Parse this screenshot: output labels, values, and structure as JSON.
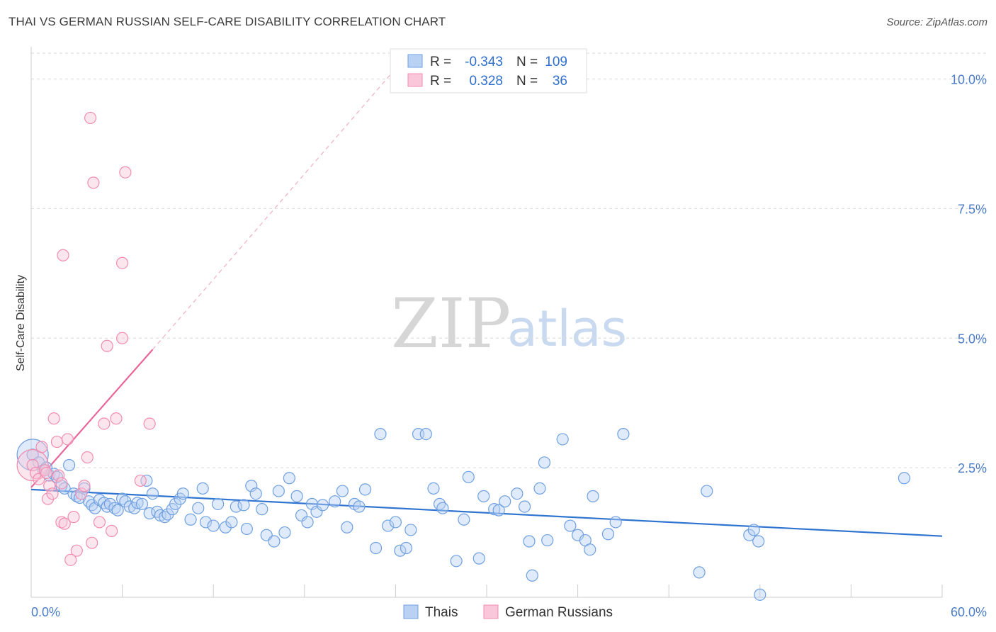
{
  "title": "THAI VS GERMAN RUSSIAN SELF-CARE DISABILITY CORRELATION CHART",
  "source": "Source: ZipAtlas.com",
  "watermark": {
    "zip": "ZIP",
    "atlas": "atlas"
  },
  "chart_data": {
    "type": "scatter",
    "ylabel": "Self-Care Disability",
    "xlabel": "",
    "xlim": [
      0,
      60
    ],
    "ylim": [
      0,
      10.5
    ],
    "x_tick_labels": [
      "0.0%",
      "60.0%"
    ],
    "y_ticks": [
      2.5,
      5.0,
      7.5,
      10.0
    ],
    "y_tick_labels": [
      "2.5%",
      "5.0%",
      "7.5%",
      "10.0%"
    ],
    "grid": "horizontal dashed",
    "legend_position": "top-center",
    "legend": [
      {
        "r_label": "R =",
        "r_value": "-0.343",
        "n_label": "N =",
        "n_value": "109"
      },
      {
        "r_label": "R =",
        "r_value": "0.328",
        "n_label": "N =",
        "n_value": "36"
      }
    ],
    "series": [
      {
        "name": "Thais",
        "color": "#6fa0e0",
        "line_color": "#2f74d0",
        "trend": {
          "x0": 0,
          "y0": 2.08,
          "x1": 60,
          "y1": 1.18
        },
        "points": [
          [
            0.1,
            2.75
          ],
          [
            0.5,
            2.6
          ],
          [
            0.8,
            2.45
          ],
          [
            1.0,
            2.5
          ],
          [
            1.2,
            2.35
          ],
          [
            1.5,
            2.38
          ],
          [
            1.7,
            2.32
          ],
          [
            2.0,
            2.15
          ],
          [
            2.2,
            2.1
          ],
          [
            2.5,
            2.55
          ],
          [
            2.8,
            2.0
          ],
          [
            3.0,
            1.95
          ],
          [
            3.2,
            1.92
          ],
          [
            3.5,
            2.1
          ],
          [
            3.8,
            1.85
          ],
          [
            4.0,
            1.78
          ],
          [
            4.2,
            1.72
          ],
          [
            4.5,
            1.88
          ],
          [
            4.8,
            1.82
          ],
          [
            5.0,
            1.75
          ],
          [
            5.2,
            1.8
          ],
          [
            5.5,
            1.72
          ],
          [
            5.7,
            1.68
          ],
          [
            6.0,
            1.9
          ],
          [
            6.2,
            1.85
          ],
          [
            6.5,
            1.75
          ],
          [
            6.8,
            1.72
          ],
          [
            7.0,
            1.82
          ],
          [
            7.3,
            1.8
          ],
          [
            7.6,
            2.25
          ],
          [
            7.8,
            1.62
          ],
          [
            8.0,
            2.0
          ],
          [
            8.3,
            1.65
          ],
          [
            8.5,
            1.58
          ],
          [
            8.8,
            1.55
          ],
          [
            9.0,
            1.6
          ],
          [
            9.3,
            1.7
          ],
          [
            9.5,
            1.8
          ],
          [
            9.8,
            1.9
          ],
          [
            10.0,
            2.0
          ],
          [
            10.5,
            1.5
          ],
          [
            11.0,
            1.72
          ],
          [
            11.3,
            2.1
          ],
          [
            11.5,
            1.45
          ],
          [
            12.0,
            1.38
          ],
          [
            12.3,
            1.8
          ],
          [
            12.8,
            1.35
          ],
          [
            13.2,
            1.45
          ],
          [
            13.5,
            1.75
          ],
          [
            14.0,
            1.78
          ],
          [
            14.2,
            1.32
          ],
          [
            14.5,
            2.15
          ],
          [
            14.8,
            2.0
          ],
          [
            15.2,
            1.7
          ],
          [
            15.5,
            1.2
          ],
          [
            16.0,
            1.08
          ],
          [
            16.3,
            2.05
          ],
          [
            16.7,
            1.25
          ],
          [
            17.0,
            2.3
          ],
          [
            17.5,
            1.95
          ],
          [
            17.8,
            1.58
          ],
          [
            18.2,
            1.45
          ],
          [
            18.5,
            1.8
          ],
          [
            18.8,
            1.65
          ],
          [
            19.2,
            1.78
          ],
          [
            20.0,
            1.85
          ],
          [
            20.5,
            2.05
          ],
          [
            20.8,
            1.35
          ],
          [
            21.3,
            1.8
          ],
          [
            21.6,
            1.75
          ],
          [
            22.0,
            2.08
          ],
          [
            22.7,
            0.95
          ],
          [
            23.0,
            3.15
          ],
          [
            23.5,
            1.38
          ],
          [
            24.0,
            1.45
          ],
          [
            24.3,
            0.9
          ],
          [
            24.7,
            0.95
          ],
          [
            25.0,
            1.3
          ],
          [
            25.5,
            3.15
          ],
          [
            26.0,
            3.15
          ],
          [
            26.5,
            2.1
          ],
          [
            26.9,
            1.8
          ],
          [
            27.1,
            1.72
          ],
          [
            28.0,
            0.7
          ],
          [
            28.5,
            1.5
          ],
          [
            28.8,
            2.32
          ],
          [
            29.5,
            0.75
          ],
          [
            29.8,
            1.95
          ],
          [
            30.5,
            1.7
          ],
          [
            30.8,
            1.68
          ],
          [
            31.2,
            1.85
          ],
          [
            32.0,
            2.0
          ],
          [
            32.5,
            1.75
          ],
          [
            32.8,
            1.08
          ],
          [
            33.0,
            0.42
          ],
          [
            33.5,
            2.1
          ],
          [
            33.8,
            2.6
          ],
          [
            34.0,
            1.1
          ],
          [
            35.0,
            3.05
          ],
          [
            35.5,
            1.38
          ],
          [
            36.0,
            1.2
          ],
          [
            36.5,
            1.1
          ],
          [
            36.8,
            0.92
          ],
          [
            37.0,
            1.95
          ],
          [
            38.0,
            1.22
          ],
          [
            38.5,
            1.45
          ],
          [
            39.0,
            3.15
          ],
          [
            44.0,
            0.48
          ],
          [
            44.5,
            2.05
          ],
          [
            47.3,
            1.2
          ],
          [
            47.6,
            1.3
          ],
          [
            47.9,
            1.08
          ],
          [
            48.0,
            0.05
          ],
          [
            57.5,
            2.3
          ]
        ],
        "big_points": [
          [
            0.1,
            2.75
          ]
        ]
      },
      {
        "name": "German Russians",
        "color": "#f08cb0",
        "line_color": "#e8659a",
        "trend": {
          "x0": 0,
          "y0": 2.12,
          "x1": 8,
          "y1": 4.78
        },
        "trend_dashed": {
          "x0": 8,
          "y0": 4.78,
          "x1": 24,
          "y1": 10.2
        },
        "points": [
          [
            0.1,
            2.55
          ],
          [
            0.3,
            2.4
          ],
          [
            0.5,
            2.28
          ],
          [
            0.7,
            2.9
          ],
          [
            0.9,
            2.45
          ],
          [
            1.0,
            2.4
          ],
          [
            1.1,
            1.9
          ],
          [
            1.2,
            2.15
          ],
          [
            1.4,
            2.0
          ],
          [
            1.5,
            3.45
          ],
          [
            1.7,
            3.0
          ],
          [
            1.8,
            2.35
          ],
          [
            2.0,
            1.45
          ],
          [
            2.2,
            1.42
          ],
          [
            2.4,
            3.05
          ],
          [
            2.6,
            0.72
          ],
          [
            2.8,
            1.55
          ],
          [
            3.0,
            0.9
          ],
          [
            3.3,
            2.0
          ],
          [
            3.5,
            2.15
          ],
          [
            3.7,
            2.7
          ],
          [
            3.9,
            9.25
          ],
          [
            4.0,
            1.05
          ],
          [
            4.1,
            8.0
          ],
          [
            4.5,
            1.45
          ],
          [
            4.8,
            3.35
          ],
          [
            5.0,
            4.85
          ],
          [
            5.3,
            1.28
          ],
          [
            5.6,
            3.45
          ],
          [
            6.0,
            5.0
          ],
          [
            6.0,
            6.45
          ],
          [
            6.2,
            8.2
          ],
          [
            7.2,
            2.25
          ],
          [
            7.8,
            3.35
          ],
          [
            2.1,
            6.6
          ],
          [
            2.0,
            2.2
          ]
        ],
        "big_points": [
          [
            0.1,
            2.55
          ]
        ]
      }
    ]
  }
}
